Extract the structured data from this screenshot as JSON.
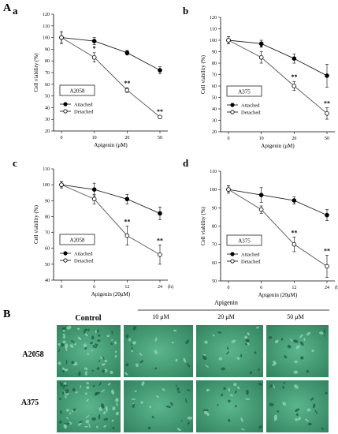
{
  "figure": {
    "section_a_label": "A",
    "section_b_label": "B"
  },
  "chart_data": [
    {
      "type": "line",
      "panel": "a",
      "cell_line": "A2058",
      "xlabel": "Apigenin (μM)",
      "ylabel": "Cell viability (%)",
      "categories": [
        "0",
        "10",
        "20",
        "50"
      ],
      "ylim": [
        20,
        120
      ],
      "yticks": [
        20,
        30,
        40,
        50,
        60,
        70,
        80,
        90,
        100,
        110,
        120
      ],
      "legend_position": "lower-left",
      "series": [
        {
          "name": "Attached",
          "marker": "filled",
          "values": [
            100,
            97,
            87,
            72
          ],
          "errors": [
            5,
            3,
            2,
            3
          ]
        },
        {
          "name": "Detached",
          "marker": "open",
          "values": [
            100,
            83,
            55,
            32
          ],
          "errors": [
            5,
            4,
            2,
            1
          ]
        }
      ],
      "annotations": [
        {
          "series": "Detached",
          "index": 1,
          "text": "*"
        },
        {
          "series": "Detached",
          "index": 2,
          "text": "**"
        },
        {
          "series": "Detached",
          "index": 3,
          "text": "**"
        }
      ]
    },
    {
      "type": "line",
      "panel": "b",
      "cell_line": "A375",
      "xlabel": "Apigenin (μM)",
      "ylabel": "Cell viability (%)",
      "categories": [
        "0",
        "10",
        "20",
        "50"
      ],
      "ylim": [
        20,
        120
      ],
      "yticks": [
        20,
        30,
        40,
        50,
        60,
        70,
        80,
        90,
        100,
        110,
        120
      ],
      "legend_position": "lower-left",
      "series": [
        {
          "name": "Attached",
          "marker": "filled",
          "values": [
            100,
            97,
            84,
            69
          ],
          "errors": [
            3,
            3,
            4,
            10
          ]
        },
        {
          "name": "Detached",
          "marker": "open",
          "values": [
            100,
            85,
            60,
            36
          ],
          "errors": [
            3,
            5,
            4,
            5
          ]
        }
      ],
      "annotations": [
        {
          "series": "Detached",
          "index": 1,
          "text": "*"
        },
        {
          "series": "Detached",
          "index": 2,
          "text": "**"
        },
        {
          "series": "Detached",
          "index": 3,
          "text": "**"
        }
      ]
    },
    {
      "type": "line",
      "panel": "c",
      "cell_line": "A2058",
      "xlabel": "Apigenin (20μM)",
      "ylabel": "Cell viability (%)",
      "categories": [
        "0",
        "6",
        "12",
        "24"
      ],
      "x_unit": "(h)",
      "ylim": [
        40,
        110
      ],
      "yticks": [
        40,
        50,
        60,
        70,
        80,
        90,
        100,
        110
      ],
      "legend_position": "lower-left",
      "series": [
        {
          "name": "Attached",
          "marker": "filled",
          "values": [
            100,
            97,
            91,
            82
          ],
          "errors": [
            2,
            4,
            3,
            4
          ]
        },
        {
          "name": "Detached",
          "marker": "open",
          "values": [
            100,
            91,
            68,
            56
          ],
          "errors": [
            2,
            3,
            6,
            6
          ]
        }
      ],
      "annotations": [
        {
          "series": "Detached",
          "index": 2,
          "text": "**"
        },
        {
          "series": "Detached",
          "index": 3,
          "text": "**"
        }
      ]
    },
    {
      "type": "line",
      "panel": "d",
      "cell_line": "A375",
      "xlabel": "Apigenin (20μM)",
      "ylabel": "Cell viability (%)",
      "categories": [
        "0",
        "6",
        "12",
        "24"
      ],
      "x_unit": "(h)",
      "ylim": [
        50,
        110
      ],
      "yticks": [
        50,
        60,
        70,
        80,
        90,
        100,
        110
      ],
      "legend_position": "lower-left",
      "series": [
        {
          "name": "Attached",
          "marker": "filled",
          "values": [
            100,
            97,
            94,
            86
          ],
          "errors": [
            2,
            4,
            2,
            3
          ]
        },
        {
          "name": "Detached",
          "marker": "open",
          "values": [
            100,
            89,
            70,
            58
          ],
          "errors": [
            2,
            2,
            4,
            6
          ]
        }
      ],
      "annotations": [
        {
          "series": "Detached",
          "index": 2,
          "text": "**"
        },
        {
          "series": "Detached",
          "index": 3,
          "text": "**"
        }
      ]
    }
  ],
  "micrographs": {
    "treatment_header": "Apigenin",
    "columns": [
      "Control",
      "10 μM",
      "20 μM",
      "50 μM"
    ],
    "rows": [
      "A2058",
      "A375"
    ],
    "colors": {
      "photo_base": "#3f9a72",
      "photo_light": "#8fd3b3",
      "photo_dark": "#1f5c43"
    }
  }
}
